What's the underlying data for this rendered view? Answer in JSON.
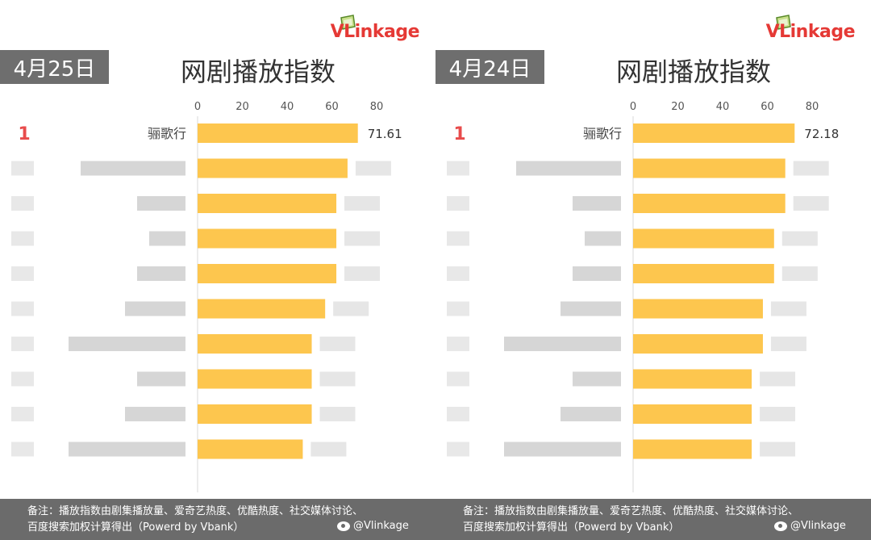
{
  "brand": {
    "prefix": "VLink",
    "suffix": "age",
    "color": "#e53935"
  },
  "bar_color": "#fdc64e",
  "panels": [
    {
      "date": "4月25日",
      "title": "网剧播放指数",
      "chart_data": {
        "type": "bar",
        "orientation": "horizontal",
        "title": "网剧播放指数",
        "xlim": [
          0,
          80
        ],
        "ticks": [
          0,
          20,
          40,
          60,
          80
        ],
        "top_rank": "1",
        "top_category": "骊歌行",
        "top_value_label": "71.61",
        "values": [
          71.61,
          67,
          62,
          62,
          62,
          57,
          51,
          51,
          51,
          47
        ],
        "label_visible": [
          true,
          false,
          false,
          false,
          false,
          false,
          false,
          false,
          false,
          false
        ]
      }
    },
    {
      "date": "4月24日",
      "title": "网剧播放指数",
      "chart_data": {
        "type": "bar",
        "orientation": "horizontal",
        "title": "网剧播放指数",
        "xlim": [
          0,
          80
        ],
        "ticks": [
          0,
          20,
          40,
          60,
          80
        ],
        "top_rank": "1",
        "top_category": "骊歌行",
        "top_value_label": "72.18",
        "values": [
          72.18,
          68,
          68,
          63,
          63,
          58,
          58,
          53,
          53,
          53
        ],
        "label_visible": [
          true,
          false,
          false,
          false,
          false,
          false,
          false,
          false,
          false,
          false
        ]
      }
    }
  ],
  "footer": {
    "note_line1": "备注：播放指数由剧集播放量、爱奇艺热度、优酷热度、社交媒体讨论、",
    "note_line2": "百度搜索加权计算得出（Powerd by Vbank）",
    "weibo_handle": "@Vlinkage"
  }
}
